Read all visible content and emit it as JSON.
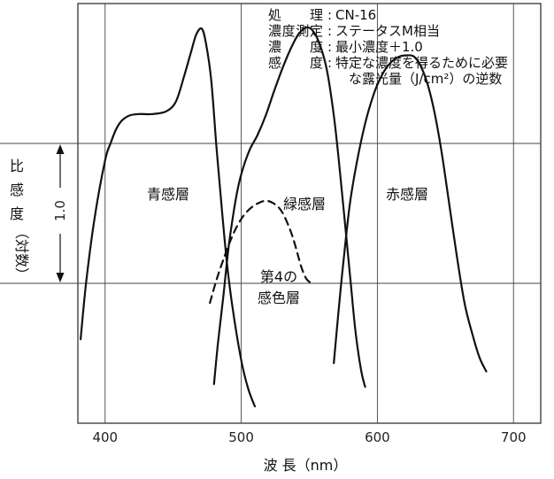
{
  "chart_data": {
    "type": "line",
    "xlabel": "波 長（nm）",
    "ylabel_chars": [
      "比",
      "感",
      "度"
    ],
    "ylabel_paren": "（対数）",
    "y_scale_label": "1.0",
    "x_ticks": [
      400,
      500,
      600,
      700
    ],
    "xlim": [
      380,
      720
    ],
    "ylim": [
      -1.0,
      2.0
    ],
    "y_ref_lines": [
      0.0,
      1.0
    ],
    "notes": [
      {
        "key": "処　理",
        "sep": ":",
        "val": "CN-16"
      },
      {
        "key": "濃度測定",
        "sep": ":",
        "val": "ステータスM相当"
      },
      {
        "key": "濃　度",
        "sep": ":",
        "val": "最小濃度＋1.0"
      },
      {
        "key": "感　度",
        "sep": ":",
        "val": "特定な濃度を得るために必要"
      },
      {
        "key": "",
        "sep": "",
        "val": "な露光量（J/cm²）の逆数"
      }
    ],
    "series": [
      {
        "name": "青感層",
        "style": "solid",
        "x": [
          382,
          386,
          392,
          400,
          404,
          408,
          412,
          418,
          425,
          435,
          445,
          452,
          458,
          463,
          467,
          471,
          474,
          478,
          482,
          486,
          490,
          494,
          500,
          505,
          510
        ],
        "y": [
          -0.4,
          0.0,
          0.45,
          0.88,
          1.0,
          1.1,
          1.16,
          1.2,
          1.21,
          1.21,
          1.23,
          1.3,
          1.48,
          1.65,
          1.78,
          1.82,
          1.72,
          1.45,
          0.95,
          0.5,
          0.1,
          -0.2,
          -0.55,
          -0.75,
          -0.88
        ]
      },
      {
        "name": "緑感層",
        "style": "solid",
        "x": [
          480,
          483,
          487,
          491,
          496,
          500,
          506,
          512,
          518,
          524,
          530,
          536,
          542,
          548,
          553,
          558,
          563,
          568,
          572,
          576,
          580,
          584,
          588,
          591
        ],
        "y": [
          -0.72,
          -0.42,
          -0.08,
          0.28,
          0.6,
          0.78,
          0.95,
          1.06,
          1.2,
          1.37,
          1.53,
          1.67,
          1.78,
          1.83,
          1.8,
          1.7,
          1.52,
          1.2,
          0.85,
          0.45,
          0.05,
          -0.35,
          -0.62,
          -0.74
        ]
      },
      {
        "name": "赤感層",
        "style": "solid",
        "x": [
          568,
          571,
          575,
          580,
          586,
          592,
          598,
          604,
          610,
          616,
          622,
          627,
          632,
          637,
          642,
          647,
          652,
          658,
          664,
          670,
          675,
          680
        ],
        "y": [
          -0.57,
          -0.25,
          0.15,
          0.58,
          0.92,
          1.18,
          1.37,
          1.5,
          1.58,
          1.62,
          1.63,
          1.62,
          1.55,
          1.42,
          1.22,
          0.95,
          0.62,
          0.22,
          -0.14,
          -0.37,
          -0.53,
          -0.63
        ]
      },
      {
        "name": "第4の感色層",
        "style": "dashed",
        "x": [
          477,
          482,
          488,
          494,
          500,
          506,
          512,
          518,
          524,
          530,
          536,
          540,
          544,
          548,
          552
        ],
        "y": [
          -0.14,
          0.03,
          0.2,
          0.35,
          0.46,
          0.53,
          0.57,
          0.59,
          0.57,
          0.51,
          0.38,
          0.26,
          0.12,
          0.03,
          0.0
        ]
      }
    ]
  }
}
